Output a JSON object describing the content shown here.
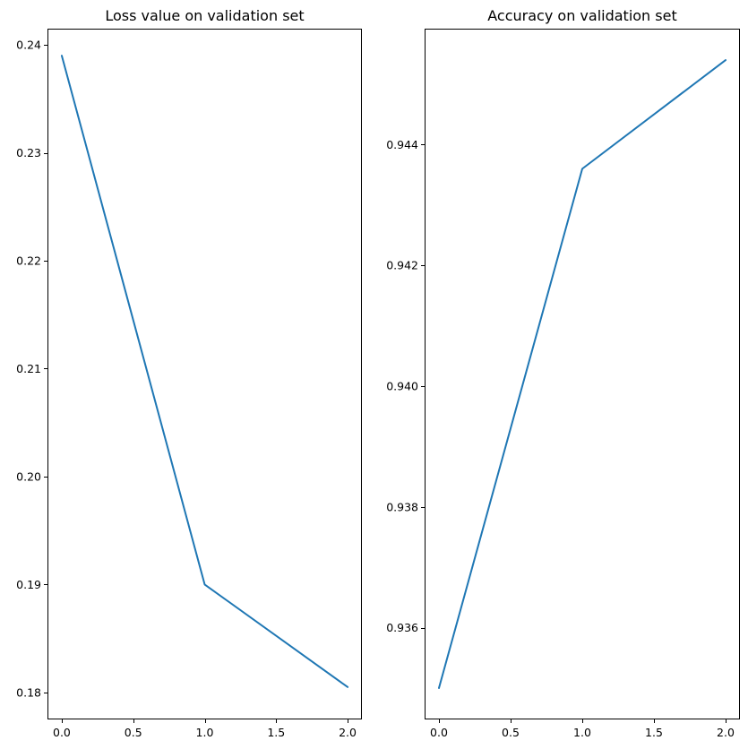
{
  "chart_data": [
    {
      "type": "line",
      "title": "Loss value on validation set",
      "xlabel": "",
      "ylabel": "",
      "x": [
        0,
        1,
        2
      ],
      "series": [
        {
          "values": [
            0.239,
            0.19,
            0.1805
          ],
          "color": "#1f77b4"
        }
      ],
      "xlim": [
        -0.1,
        2.1
      ],
      "ylim": [
        0.1775,
        0.2415
      ],
      "xticks": [
        0.0,
        0.5,
        1.0,
        1.5,
        2.0
      ],
      "xtick_labels": [
        "0.0",
        "0.5",
        "1.0",
        "1.5",
        "2.0"
      ],
      "yticks": [
        0.18,
        0.19,
        0.2,
        0.21,
        0.22,
        0.23,
        0.24
      ],
      "ytick_labels": [
        "0.18",
        "0.19",
        "0.20",
        "0.21",
        "0.22",
        "0.23",
        "0.24"
      ],
      "grid": false
    },
    {
      "type": "line",
      "title": "Accuracy on validation set",
      "xlabel": "",
      "ylabel": "",
      "x": [
        0,
        1,
        2
      ],
      "series": [
        {
          "values": [
            0.935,
            0.9436,
            0.9454
          ],
          "color": "#1f77b4"
        }
      ],
      "xlim": [
        -0.1,
        2.1
      ],
      "ylim": [
        0.93448,
        0.94592
      ],
      "xticks": [
        0.0,
        0.5,
        1.0,
        1.5,
        2.0
      ],
      "xtick_labels": [
        "0.0",
        "0.5",
        "1.0",
        "1.5",
        "2.0"
      ],
      "yticks": [
        0.936,
        0.938,
        0.94,
        0.942,
        0.944
      ],
      "ytick_labels": [
        "0.936",
        "0.938",
        "0.940",
        "0.942",
        "0.944"
      ],
      "grid": false
    }
  ]
}
